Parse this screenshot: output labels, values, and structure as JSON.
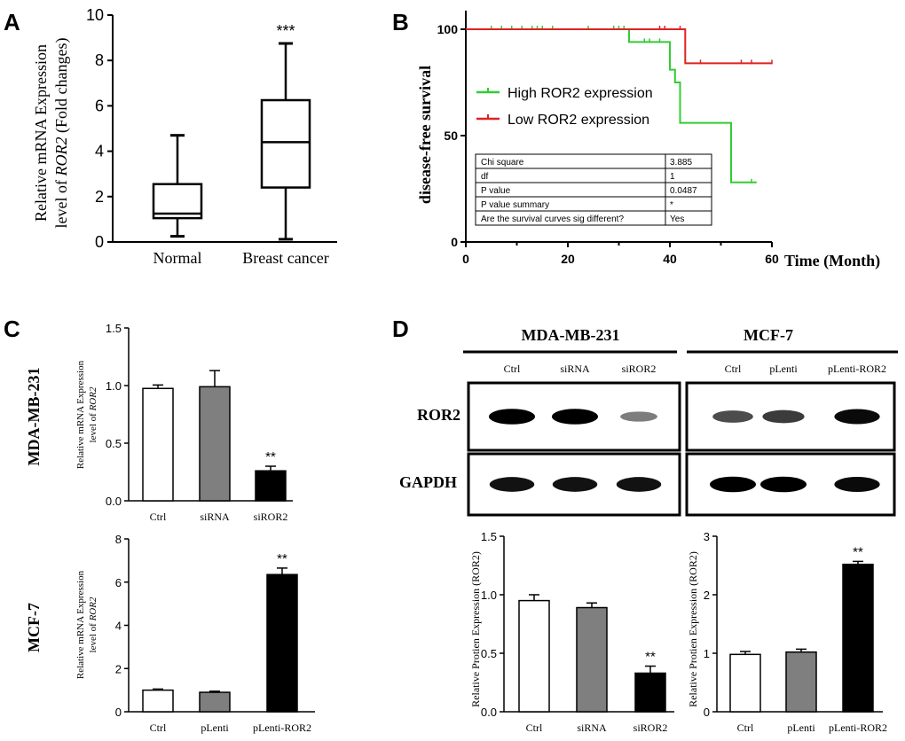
{
  "colors": {
    "high": "#33cc33",
    "low": "#dd2222",
    "gray": "#7f7f7f",
    "black": "#000000",
    "white": "#ffffff"
  },
  "panel_labels": {
    "a": "A",
    "b": "B",
    "c": "C",
    "d": "D"
  },
  "chart_data": [
    {
      "id": "A",
      "type": "boxplot",
      "ylabel_prefix": "Relative mRNA Expression",
      "ylabel_level": "level of ",
      "ylabel_gene": "ROR2",
      "ylabel_suffix": " (Fold changes)",
      "ylim": [
        0,
        10
      ],
      "yticks": [
        0,
        2,
        4,
        6,
        8,
        10
      ],
      "categories": [
        "Normal",
        "Breast cancer"
      ],
      "boxes": [
        {
          "min": 0.25,
          "q1": 1.05,
          "median": 1.25,
          "q3": 2.55,
          "max": 4.7
        },
        {
          "min": 0.12,
          "q1": 2.4,
          "median": 4.4,
          "q3": 6.25,
          "max": 8.75
        }
      ],
      "annotations": [
        "",
        "***"
      ]
    },
    {
      "id": "B",
      "type": "line",
      "xlabel": "Time (Month)",
      "ylabel": "disease-free  survival",
      "xlim": [
        0,
        60
      ],
      "ylim": [
        0,
        100
      ],
      "xticks": [
        0,
        20,
        40,
        60
      ],
      "yticks": [
        0,
        50,
        100
      ],
      "series": [
        {
          "name": "High ROR2 expression",
          "steps": [
            [
              0,
              100
            ],
            [
              32,
              100
            ],
            [
              32,
              94
            ],
            [
              40,
              94
            ],
            [
              40,
              81
            ],
            [
              41,
              81
            ],
            [
              41,
              75
            ],
            [
              42,
              75
            ],
            [
              42,
              56
            ],
            [
              52,
              56
            ],
            [
              52,
              28
            ],
            [
              57,
              28
            ]
          ],
          "censors": [
            [
              5,
              100
            ],
            [
              7,
              100
            ],
            [
              9,
              100
            ],
            [
              11,
              100
            ],
            [
              13,
              100
            ],
            [
              14,
              100
            ],
            [
              15,
              100
            ],
            [
              17,
              100
            ],
            [
              24,
              100
            ],
            [
              29,
              100
            ],
            [
              30,
              100
            ],
            [
              31,
              100
            ],
            [
              35,
              94
            ],
            [
              36,
              94
            ],
            [
              38,
              94
            ],
            [
              56,
              28
            ]
          ]
        },
        {
          "name": "Low ROR2 expression",
          "steps": [
            [
              0,
              100
            ],
            [
              43,
              100
            ],
            [
              43,
              84
            ],
            [
              60,
              84
            ]
          ],
          "censors": [
            [
              38,
              100
            ],
            [
              39,
              100
            ],
            [
              42,
              100
            ],
            [
              46,
              84
            ],
            [
              54,
              84
            ],
            [
              56,
              84
            ],
            [
              60,
              84
            ]
          ]
        }
      ],
      "stats_table": [
        [
          "Chi square",
          "3.885"
        ],
        [
          "df",
          "1"
        ],
        [
          "P value",
          "0.0487"
        ],
        [
          "P value summary",
          "*"
        ],
        [
          "Are the survival curves sig different?",
          "Yes"
        ]
      ]
    },
    {
      "id": "C1",
      "type": "bar",
      "row_label": "MDA-MB-231",
      "ylabel_line1": "Relative mRNA Expression",
      "ylabel_line2": "level of ",
      "ylabel_gene": "ROR2",
      "categories": [
        "Ctrl",
        "siRNA",
        "siROR2"
      ],
      "values": [
        0.975,
        0.99,
        0.26
      ],
      "errors": [
        0.03,
        0.14,
        0.04
      ],
      "ylim": [
        0,
        1.5
      ],
      "yticks": [
        "0.0",
        "0.5",
        "1.0",
        "1.5"
      ],
      "annotations": [
        "",
        "",
        "**"
      ]
    },
    {
      "id": "C2",
      "type": "bar",
      "row_label": "MCF-7",
      "ylabel_line1": "Relative mRNA Expression",
      "ylabel_line2": "level of ",
      "ylabel_gene": "ROR2",
      "categories": [
        "Ctrl",
        "pLenti",
        "pLenti-ROR2"
      ],
      "values": [
        1.0,
        0.9,
        6.35
      ],
      "errors": [
        0.05,
        0.05,
        0.3
      ],
      "ylim": [
        0,
        8
      ],
      "yticks": [
        "0",
        "2",
        "4",
        "6",
        "8"
      ],
      "annotations": [
        "",
        "",
        "**"
      ]
    },
    {
      "id": "D1",
      "type": "bar",
      "ylabel": "Relative Protien Expression (ROR2)",
      "categories": [
        "Ctrl",
        "siRNA",
        "siROR2"
      ],
      "values": [
        0.95,
        0.89,
        0.33
      ],
      "errors": [
        0.05,
        0.04,
        0.06
      ],
      "ylim": [
        0,
        1.5
      ],
      "yticks": [
        "0.0",
        "0.5",
        "1.0",
        "1.5"
      ],
      "annotations": [
        "",
        "",
        "**"
      ]
    },
    {
      "id": "D2",
      "type": "bar",
      "ylabel": "Relative Protien Expression (ROR2)",
      "categories": [
        "Ctrl",
        "pLenti",
        "pLenti-ROR2"
      ],
      "values": [
        0.98,
        1.02,
        2.52
      ],
      "errors": [
        0.05,
        0.05,
        0.05
      ],
      "ylim": [
        0,
        3
      ],
      "yticks": [
        "0",
        "1",
        "2",
        "3"
      ],
      "annotations": [
        "",
        "",
        "**"
      ]
    }
  ],
  "western_blot": {
    "groups": [
      "MDA-MB-231",
      "MCF-7"
    ],
    "lanes": [
      [
        "Ctrl",
        "siRNA",
        "siROR2"
      ],
      [
        "Ctrl",
        "pLenti",
        "pLenti-ROR2"
      ]
    ],
    "rows": [
      "ROR2",
      "GAPDH"
    ],
    "intensities": {
      "ROR2": [
        [
          1.0,
          1.0,
          0.35
        ],
        [
          0.6,
          0.7,
          0.95
        ]
      ],
      "GAPDH": [
        [
          0.9,
          0.9,
          0.9
        ],
        [
          1.0,
          1.0,
          0.95
        ]
      ]
    }
  }
}
